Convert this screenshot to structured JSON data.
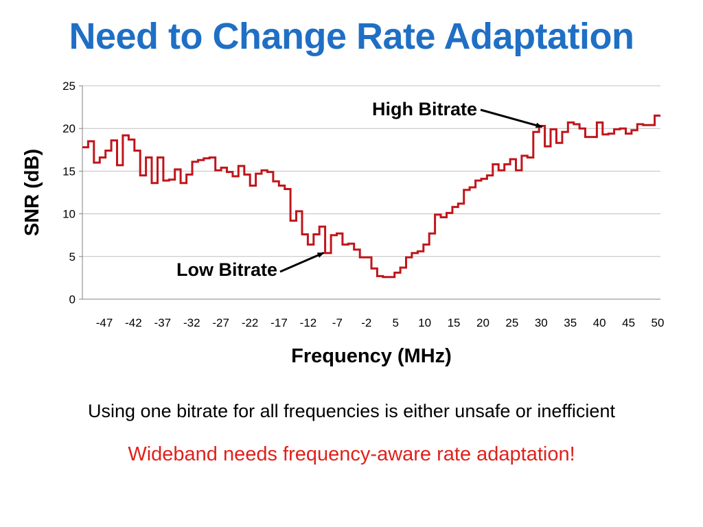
{
  "slide": {
    "title": "Need to Change Rate Adaptation",
    "note1": "Using one bitrate for all frequencies is either unsafe or inefficient",
    "note2": "Wideband needs frequency-aware rate adaptation!"
  },
  "colors": {
    "title": "#1f6fc5",
    "series": "#c0151b",
    "note2": "#e0201b",
    "grid": "#bfbfbf"
  },
  "chart_data": {
    "type": "line",
    "xlabel": "Frequency (MHz)",
    "ylabel": "SNR (dB)",
    "ylim": [
      0,
      25
    ],
    "yticks": [
      0,
      5,
      10,
      15,
      20,
      25
    ],
    "xlim": [
      -50,
      50
    ],
    "xticks": [
      "-47",
      "-42",
      "-37",
      "-32",
      "-27",
      "-22",
      "-17",
      "-12",
      "-7",
      "-2",
      "5",
      "10",
      "15",
      "20",
      "25",
      "30",
      "35",
      "40",
      "45",
      "50"
    ],
    "grid": true,
    "annotations": [
      {
        "text": "High Bitrate",
        "x": 30,
        "y": 20.5
      },
      {
        "text": "Low Bitrate",
        "x": -8,
        "y": 5.6
      }
    ],
    "series": [
      {
        "x": [
          -50,
          -49,
          -48,
          -47,
          -46,
          -45,
          -44,
          -43,
          -42,
          -41,
          -40,
          -39,
          -38,
          -37,
          -36,
          -35,
          -34,
          -33,
          -32,
          -31,
          -30,
          -29,
          -28,
          -27,
          -26,
          -25,
          -24,
          -23,
          -22,
          -21,
          -20,
          -19,
          -18,
          -17,
          -16,
          -15,
          -14,
          -13,
          -12,
          -11,
          -10,
          -9,
          -8,
          -7,
          -6,
          -5,
          -4,
          -3,
          -2,
          -1,
          0,
          1,
          2,
          3,
          4,
          5,
          6,
          7,
          8,
          9,
          10,
          11,
          12,
          13,
          14,
          15,
          16,
          17,
          18,
          19,
          20,
          21,
          22,
          23,
          24,
          25,
          26,
          27,
          28,
          29,
          30,
          31,
          32,
          33,
          34,
          35,
          36,
          37,
          38,
          39,
          40,
          41,
          42,
          43,
          44,
          45,
          46,
          47,
          48,
          49,
          50
        ],
        "y": [
          17.8,
          18.5,
          16.0,
          16.6,
          17.4,
          18.6,
          15.7,
          19.2,
          18.7,
          17.4,
          14.5,
          16.6,
          13.6,
          16.6,
          13.9,
          14.0,
          15.2,
          13.6,
          14.6,
          16.1,
          16.3,
          16.5,
          16.6,
          15.1,
          15.4,
          14.9,
          14.4,
          15.6,
          14.6,
          13.3,
          14.7,
          15.1,
          14.9,
          13.8,
          13.3,
          12.9,
          9.2,
          10.3,
          7.6,
          6.4,
          7.6,
          8.5,
          5.4,
          7.5,
          7.7,
          6.4,
          6.5,
          5.8,
          4.9,
          4.9,
          3.6,
          2.7,
          2.6,
          2.6,
          3.1,
          3.7,
          4.9,
          5.4,
          5.6,
          6.4,
          7.7,
          9.9,
          9.6,
          10.1,
          10.8,
          11.2,
          12.8,
          13.1,
          13.9,
          14.1,
          14.5,
          15.8,
          15.1,
          15.8,
          16.4,
          15.1,
          16.8,
          16.6,
          19.6,
          20.3,
          17.9,
          19.9,
          18.3,
          19.6,
          20.7,
          20.5,
          20.0,
          19.0,
          19.0,
          20.7,
          19.3,
          19.4,
          19.9,
          20.0,
          19.4,
          19.8,
          20.5,
          20.4,
          20.4,
          21.5,
          21.5
        ]
      }
    ]
  }
}
